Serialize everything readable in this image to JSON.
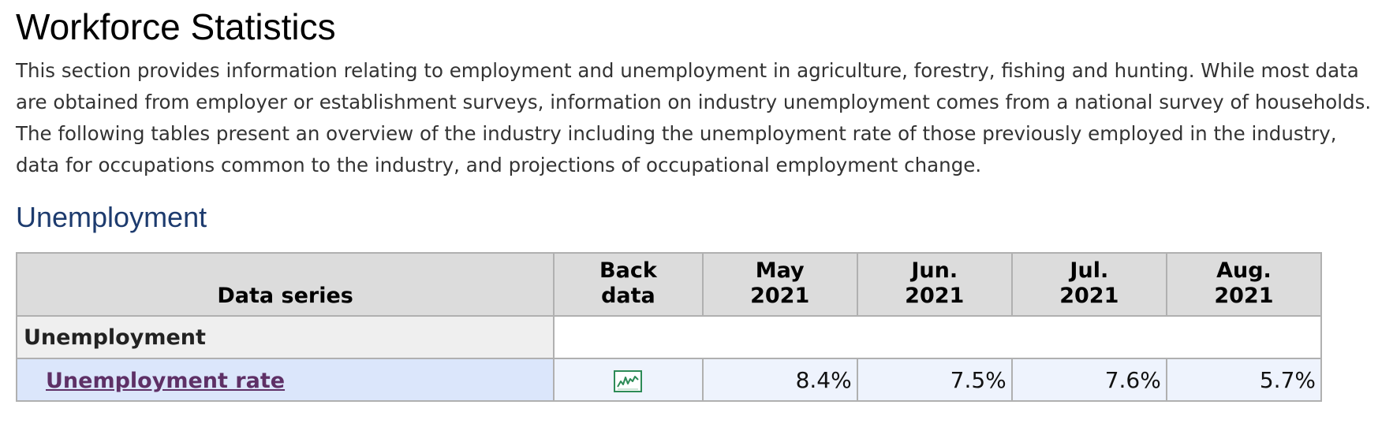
{
  "page": {
    "title": "Workforce Statistics",
    "intro": "This section provides information relating to employment and unemployment in agriculture, forestry, fishing and hunting. While most data are obtained from employer or establishment surveys, information on industry unemployment comes from a national survey of households. The following tables present an overview of the industry including the unemployment rate of those previously employed in the industry, data for occupations common to the industry, and projections of occupational employment change.",
    "section_heading": "Unemployment"
  },
  "table": {
    "headers": {
      "series": "Data series",
      "back_line1": "Back",
      "back_line2": "data",
      "periods": [
        {
          "line1": "May",
          "line2": "2021"
        },
        {
          "line1": "Jun.",
          "line2": "2021"
        },
        {
          "line1": "Jul.",
          "line2": "2021"
        },
        {
          "line1": "Aug.",
          "line2": "2021"
        }
      ]
    },
    "section_label": "Unemployment",
    "rows": [
      {
        "series": "Unemployment rate",
        "back_icon": "line-chart-icon",
        "values": [
          "8.4%",
          "7.5%",
          "7.6%",
          "5.7%"
        ]
      }
    ]
  },
  "colors": {
    "section_heading": "#1d3b6e",
    "link": "#5e3066",
    "header_bg": "#dcdcdc",
    "row_bg": "#eef3fd",
    "series_cell_bg": "#dbe6fb",
    "chart_icon": "#2e8b57"
  }
}
